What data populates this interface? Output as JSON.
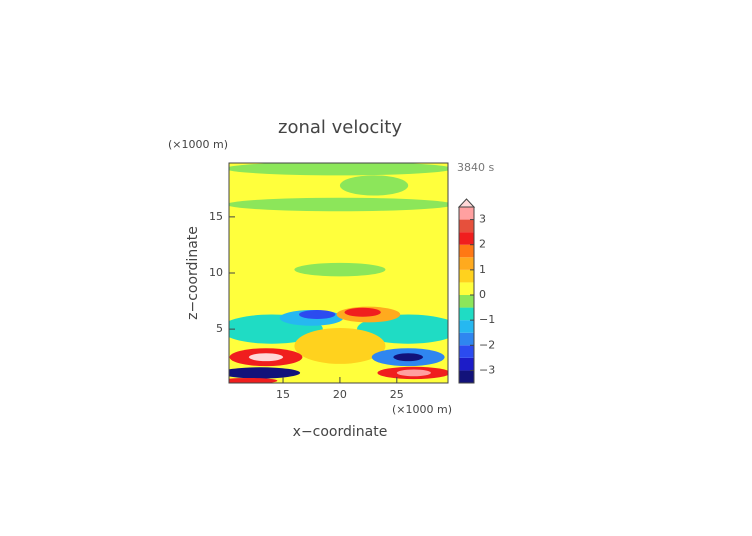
{
  "chart_data": {
    "type": "contour",
    "title": "zonal velocity",
    "x_label": "x−coordinate",
    "y_label": "z−coordinate",
    "x_unit": "(×1000 m)",
    "y_unit": "(×1000 m)",
    "time_label": "3840 s",
    "xlim": [
      10.25,
      29.5
    ],
    "ylim": [
      0.2,
      19.8
    ],
    "xticks": [
      15,
      20,
      25
    ],
    "yticks": [
      5,
      10,
      15
    ],
    "field_background": 0.25,
    "features": [
      {
        "x": 19.9,
        "z": 19.3,
        "rx": 10,
        "rz": 0.6,
        "value": -0.25
      },
      {
        "x": 23,
        "z": 17.8,
        "rx": 3,
        "rz": 0.9,
        "value": -0.25
      },
      {
        "x": 20,
        "z": 16.1,
        "rx": 10,
        "rz": 0.6,
        "value": -0.25
      },
      {
        "x": 20,
        "z": 10.3,
        "rx": 4,
        "rz": 0.6,
        "value": -0.25
      },
      {
        "x": 20,
        "z": 5.5,
        "rx": 10,
        "rz": 2.3,
        "value": 0.25
      },
      {
        "x": 14,
        "z": 5,
        "rx": 4.5,
        "rz": 1.3,
        "value": -0.75
      },
      {
        "x": 26,
        "z": 5,
        "rx": 4.5,
        "rz": 1.3,
        "value": -0.75
      },
      {
        "x": 17.5,
        "z": 6,
        "rx": 2.8,
        "rz": 0.7,
        "value": -1.25
      },
      {
        "x": 18,
        "z": 6.3,
        "rx": 1.6,
        "rz": 0.4,
        "value": -2.25
      },
      {
        "x": 22.5,
        "z": 6.3,
        "rx": 2.8,
        "rz": 0.7,
        "value": 1.25
      },
      {
        "x": 22,
        "z": 6.5,
        "rx": 1.6,
        "rz": 0.4,
        "value": 2.25
      },
      {
        "x": 20,
        "z": 3.5,
        "rx": 4,
        "rz": 1.6,
        "value": 0.75
      },
      {
        "x": 13.5,
        "z": 2.5,
        "rx": 3.2,
        "rz": 0.8,
        "value": 2.25
      },
      {
        "x": 13.5,
        "z": 2.5,
        "rx": 1.5,
        "rz": 0.35,
        "value": 3.75
      },
      {
        "x": 26,
        "z": 2.5,
        "rx": 3.2,
        "rz": 0.8,
        "value": -1.75
      },
      {
        "x": 26,
        "z": 2.5,
        "rx": 1.3,
        "rz": 0.35,
        "value": -3.25
      },
      {
        "x": 13,
        "z": 1.1,
        "rx": 3.5,
        "rz": 0.5,
        "value": -3.25
      },
      {
        "x": 26.5,
        "z": 1.1,
        "rx": 3.2,
        "rz": 0.55,
        "value": 2.25
      },
      {
        "x": 26.5,
        "z": 1.1,
        "rx": 1.5,
        "rz": 0.3,
        "value": 3.25
      },
      {
        "x": 12,
        "z": 0.4,
        "rx": 2.5,
        "rz": 0.25,
        "value": 2.25
      }
    ],
    "colorbar": {
      "levels": [
        -3.5,
        -3,
        -2.5,
        -2,
        -1.5,
        -1,
        -0.5,
        0,
        0.5,
        1,
        1.5,
        2,
        2.5,
        3,
        3.5
      ],
      "colors": [
        "#12127a",
        "#1c1cc8",
        "#2b4bf0",
        "#2f86f0",
        "#26b8f0",
        "#1fdcc4",
        "#8ce65a",
        "#ffff3c",
        "#ffd21e",
        "#ffaa1e",
        "#ff7814",
        "#f01e1e",
        "#e6503c",
        "#ffa0a0"
      ],
      "extend_color": "#ffd8d8",
      "ticks": [
        {
          "value": -3,
          "label": "−3"
        },
        {
          "value": -2,
          "label": "−2"
        },
        {
          "value": -1,
          "label": "−1"
        },
        0,
        1,
        2,
        3
      ]
    }
  }
}
